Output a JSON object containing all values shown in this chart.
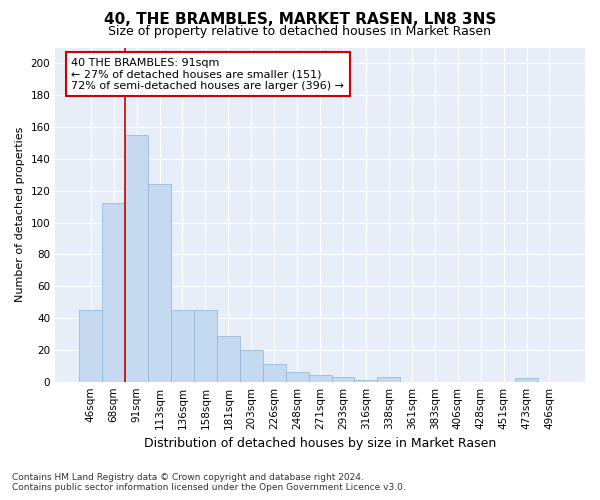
{
  "title": "40, THE BRAMBLES, MARKET RASEN, LN8 3NS",
  "subtitle": "Size of property relative to detached houses in Market Rasen",
  "xlabel": "Distribution of detached houses by size in Market Rasen",
  "ylabel": "Number of detached properties",
  "footer_line1": "Contains HM Land Registry data © Crown copyright and database right 2024.",
  "footer_line2": "Contains public sector information licensed under the Open Government Licence v3.0.",
  "annotation_title": "40 THE BRAMBLES: 91sqm",
  "annotation_line2": "← 27% of detached houses are smaller (151)",
  "annotation_line3": "72% of semi-detached houses are larger (396) →",
  "bar_labels": [
    "46sqm",
    "68sqm",
    "91sqm",
    "113sqm",
    "136sqm",
    "158sqm",
    "181sqm",
    "203sqm",
    "226sqm",
    "248sqm",
    "271sqm",
    "293sqm",
    "316sqm",
    "338sqm",
    "361sqm",
    "383sqm",
    "406sqm",
    "428sqm",
    "451sqm",
    "473sqm",
    "496sqm"
  ],
  "bar_values": [
    45,
    112,
    155,
    124,
    45,
    45,
    29,
    20,
    11,
    6,
    4,
    3,
    1,
    3,
    0,
    0,
    0,
    0,
    0,
    2,
    0
  ],
  "bar_color": "#c5d9f0",
  "bar_edge_color": "#8ab4d8",
  "vline_color": "#cc0000",
  "vline_x_index": 2,
  "annotation_box_color": "#cc0000",
  "background_color": "#ffffff",
  "plot_bg_color": "#e8eef8",
  "grid_color": "#ffffff",
  "ylim": [
    0,
    210
  ],
  "yticks": [
    0,
    20,
    40,
    60,
    80,
    100,
    120,
    140,
    160,
    180,
    200
  ],
  "title_fontsize": 11,
  "subtitle_fontsize": 9,
  "ylabel_fontsize": 8,
  "xlabel_fontsize": 9,
  "footer_fontsize": 6.5,
  "tick_fontsize": 7.5,
  "ann_fontsize": 8
}
